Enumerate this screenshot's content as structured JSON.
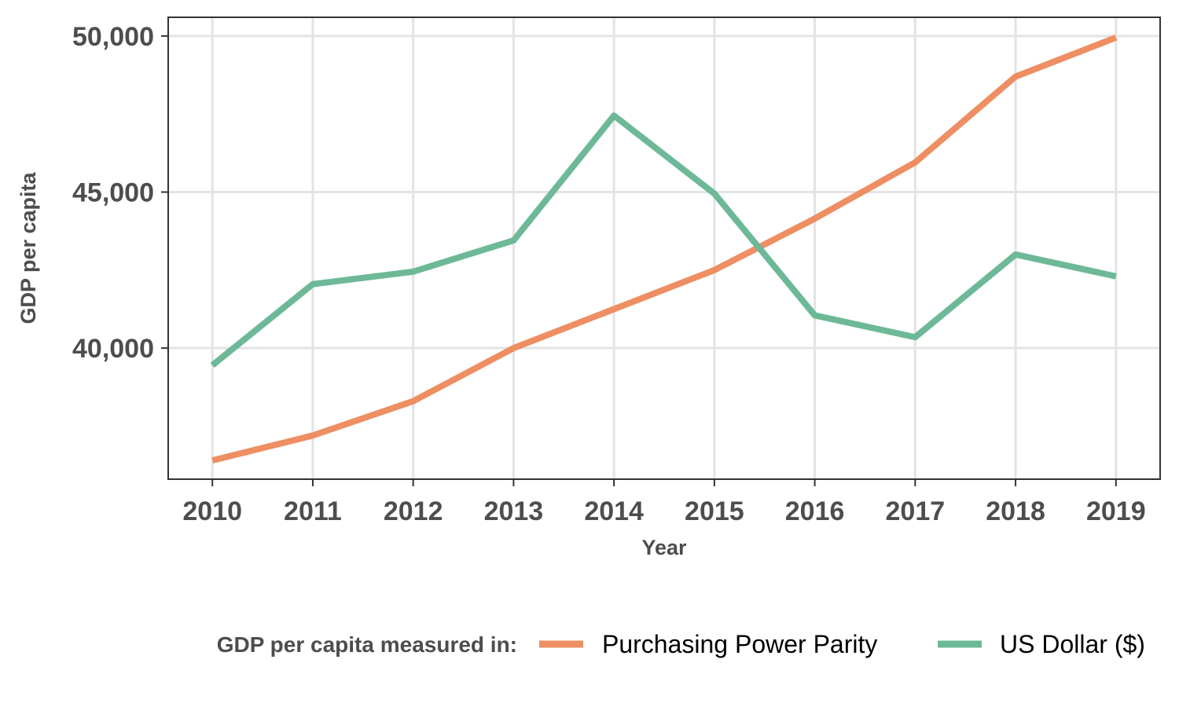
{
  "chart_data": {
    "type": "line",
    "title": "",
    "xlabel": "Year",
    "ylabel": "GDP per capita",
    "x": [
      2010,
      2011,
      2012,
      2013,
      2014,
      2015,
      2016,
      2017,
      2018,
      2019
    ],
    "x_tick_labels": [
      "2010",
      "2011",
      "2012",
      "2013",
      "2014",
      "2015",
      "2016",
      "2017",
      "2018",
      "2019"
    ],
    "y_ticks": [
      40000,
      45000,
      50000
    ],
    "y_tick_labels": [
      "40,000",
      "45,000",
      "50,000"
    ],
    "xlim": [
      2009.56,
      2019.44
    ],
    "ylim": [
      35800,
      50600
    ],
    "grid": true,
    "legend": {
      "title": "GDP per capita measured in:",
      "placement": "bottom"
    },
    "series": [
      {
        "name": "Purchasing Power Parity",
        "color": "#ee8e63",
        "values": [
          36400,
          37200,
          38300,
          40000,
          41250,
          42500,
          44150,
          45950,
          48700,
          49950
        ]
      },
      {
        "name": "US Dollar ($)",
        "color": "#6db997",
        "values": [
          39450,
          42050,
          42450,
          43450,
          47450,
          44950,
          41050,
          40350,
          43000,
          42300
        ]
      }
    ]
  }
}
